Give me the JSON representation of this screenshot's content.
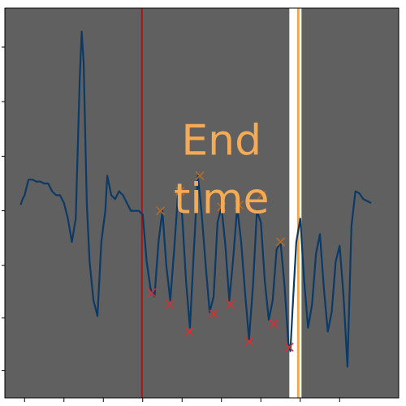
{
  "chart_data": {
    "type": "line",
    "title": "",
    "xlabel": "",
    "ylabel": "",
    "xlim": [
      0,
      100
    ],
    "ylim": [
      0,
      100
    ],
    "grid": false,
    "colors": {
      "plot_bg": "#606060",
      "signal": "#0b3a66",
      "start_line": "#a01818",
      "end_line": "#f0a84e",
      "end_band": "#ffffff",
      "peak_marker": "#b36a2a",
      "trough_marker": "#d63030",
      "annotation": "#f5aa56"
    },
    "x_ticks": [
      5,
      15,
      25,
      35,
      45,
      55,
      65,
      75,
      85
    ],
    "y_ticks": [
      7,
      20.5,
      34,
      48,
      62,
      76,
      90
    ],
    "start_marker_x": 34.8,
    "end_marker_x": 74.5,
    "annotation": {
      "line1": "End",
      "line2": "time",
      "x": 55,
      "y": 72
    },
    "series": [
      {
        "values": [
          [
            4,
            49.5
          ],
          [
            4.5,
            51
          ],
          [
            5,
            52
          ],
          [
            6,
            56
          ],
          [
            7,
            56
          ],
          [
            8,
            55.5
          ],
          [
            9,
            55.5
          ],
          [
            10,
            55
          ],
          [
            11,
            55
          ],
          [
            12,
            53
          ],
          [
            13,
            52
          ],
          [
            14,
            52
          ],
          [
            15,
            50
          ],
          [
            16,
            46
          ],
          [
            17,
            40
          ],
          [
            18,
            46
          ],
          [
            19,
            82
          ],
          [
            19.5,
            94
          ],
          [
            20,
            86
          ],
          [
            20.8,
            50
          ],
          [
            21.5,
            35
          ],
          [
            22.5,
            25
          ],
          [
            23.5,
            21
          ],
          [
            24.5,
            40
          ],
          [
            25.5,
            48
          ],
          [
            26,
            57
          ],
          [
            27,
            52
          ],
          [
            28,
            51
          ],
          [
            29,
            53
          ],
          [
            30,
            52
          ],
          [
            31,
            50
          ],
          [
            32,
            48
          ],
          [
            33,
            48
          ],
          [
            34,
            48
          ],
          [
            35,
            47
          ],
          [
            36,
            35
          ],
          [
            37,
            28
          ],
          [
            38,
            26
          ],
          [
            39,
            40
          ],
          [
            40,
            48
          ],
          [
            41,
            34
          ],
          [
            42,
            25
          ],
          [
            43,
            38
          ],
          [
            44,
            53
          ],
          [
            45,
            47
          ],
          [
            46,
            30
          ],
          [
            47,
            18
          ],
          [
            48,
            38
          ],
          [
            49,
            57
          ],
          [
            50,
            47
          ],
          [
            51,
            34
          ],
          [
            52,
            22
          ],
          [
            53,
            26
          ],
          [
            54,
            45
          ],
          [
            55,
            49
          ],
          [
            56,
            39
          ],
          [
            57,
            25
          ],
          [
            58,
            36
          ],
          [
            59,
            49
          ],
          [
            60,
            40
          ],
          [
            61,
            27
          ],
          [
            62,
            15
          ],
          [
            63,
            29
          ],
          [
            64,
            48
          ],
          [
            65,
            45
          ],
          [
            66,
            30
          ],
          [
            67,
            20
          ],
          [
            68,
            25
          ],
          [
            69,
            38
          ],
          [
            70,
            40
          ],
          [
            71,
            29
          ],
          [
            72,
            14
          ],
          [
            72.5,
            12
          ],
          [
            73,
            22
          ],
          [
            74,
            40
          ],
          [
            75,
            46
          ],
          [
            76,
            30
          ],
          [
            77,
            18
          ],
          [
            78,
            24
          ],
          [
            79,
            37
          ],
          [
            80,
            42
          ],
          [
            81,
            28
          ],
          [
            82,
            17
          ],
          [
            83,
            22
          ],
          [
            84,
            35
          ],
          [
            85,
            39
          ],
          [
            86,
            26
          ],
          [
            87,
            8
          ],
          [
            88,
            44
          ],
          [
            89,
            53
          ],
          [
            90,
            52.5
          ],
          [
            91,
            51
          ],
          [
            92,
            50.5
          ],
          [
            93,
            50
          ]
        ]
      }
    ],
    "peaks": [
      [
        39.5,
        48
      ],
      [
        44.5,
        53
      ],
      [
        49.5,
        57
      ],
      [
        55,
        49
      ],
      [
        59.5,
        49.5
      ],
      [
        65.2,
        52
      ],
      [
        70,
        40
      ]
    ],
    "troughs": [
      [
        37.2,
        27
      ],
      [
        41.8,
        24
      ],
      [
        46.8,
        17
      ],
      [
        53,
        21.5
      ],
      [
        57.3,
        24
      ],
      [
        62,
        14.5
      ],
      [
        68.2,
        19
      ],
      [
        72.2,
        13
      ]
    ]
  }
}
